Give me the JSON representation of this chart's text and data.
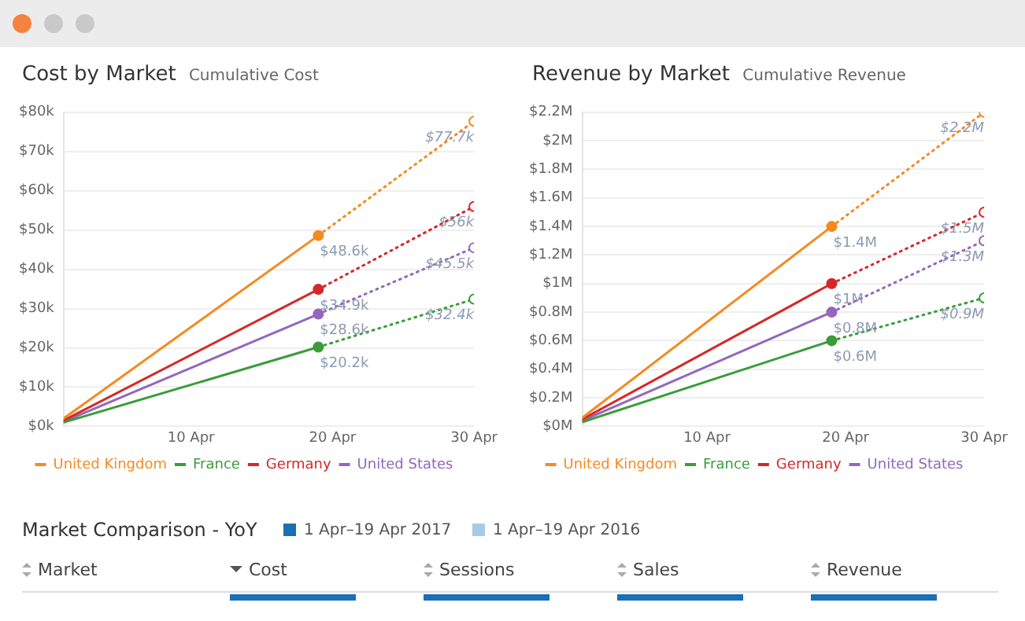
{
  "chart_data": [
    {
      "type": "line",
      "title": "Cost by Market",
      "subtitle": "Cumulative Cost",
      "xlim": [
        "--04-01",
        "--04-30"
      ],
      "xticks": [
        {
          "value": "--04-10",
          "label": "10 Apr"
        },
        {
          "value": "--04-20",
          "label": "20 Apr"
        },
        {
          "value": "--04-30",
          "label": "30 Apr"
        }
      ],
      "ylim": [
        0,
        80000
      ],
      "yticks": [
        {
          "value": 0,
          "label": "$0k"
        },
        {
          "value": 10000,
          "label": "$10k"
        },
        {
          "value": 20000,
          "label": "$20k"
        },
        {
          "value": 30000,
          "label": "$30k"
        },
        {
          "value": 40000,
          "label": "$40k"
        },
        {
          "value": 50000,
          "label": "$50k"
        },
        {
          "value": 60000,
          "label": "$60k"
        },
        {
          "value": 70000,
          "label": "$70k"
        },
        {
          "value": 80000,
          "label": "$80k"
        }
      ],
      "grid": "y",
      "legend": "bottom",
      "marker": "circle",
      "series": [
        {
          "name": "United Kingdom",
          "color": "#f58a1f",
          "x": [
            "--04-01",
            "--04-19"
          ],
          "values": [
            2000,
            48600
          ],
          "value_labels": [
            null,
            "$48.6k"
          ],
          "line_style": "solid"
        },
        {
          "name": "France",
          "color": "#3a9d3a",
          "x": [
            "--04-01",
            "--04-19"
          ],
          "values": [
            1000,
            20200
          ],
          "value_labels": [
            null,
            "$20.2k"
          ],
          "line_style": "solid"
        },
        {
          "name": "Germany",
          "color": "#d62728",
          "x": [
            "--04-01",
            "--04-19"
          ],
          "values": [
            1500,
            34900
          ],
          "value_labels": [
            null,
            "$34.9k"
          ],
          "line_style": "solid"
        },
        {
          "name": "United States",
          "color": "#9467bd",
          "x": [
            "--04-01",
            "--04-19"
          ],
          "values": [
            1200,
            28600
          ],
          "value_labels": [
            null,
            "$28.6k"
          ],
          "line_style": "solid"
        },
        {
          "color": "#f58a1f",
          "x": [
            "--04-19",
            "--04-30"
          ],
          "values": [
            48600,
            77700
          ],
          "value_labels": [
            null,
            "$77.7k"
          ],
          "line_style": "dotted"
        },
        {
          "color": "#3a9d3a",
          "x": [
            "--04-19",
            "--04-30"
          ],
          "values": [
            20200,
            32400
          ],
          "value_labels": [
            null,
            "$32.4k"
          ],
          "line_style": "dotted"
        },
        {
          "color": "#d62728",
          "x": [
            "--04-19",
            "--04-30"
          ],
          "values": [
            34900,
            56000
          ],
          "value_labels": [
            null,
            "$56k"
          ],
          "line_style": "dotted"
        },
        {
          "color": "#9467bd",
          "x": [
            "--04-19",
            "--04-30"
          ],
          "values": [
            28600,
            45500
          ],
          "value_labels": [
            null,
            "$45.5k"
          ],
          "line_style": "dotted"
        }
      ]
    },
    {
      "type": "line",
      "title": "Revenue by Market",
      "subtitle": "Cumulative Revenue",
      "xlim": [
        "--04-01",
        "--04-30"
      ],
      "xticks": [
        {
          "value": "--04-10",
          "label": "10 Apr"
        },
        {
          "value": "--04-20",
          "label": "20 Apr"
        },
        {
          "value": "--04-30",
          "label": "30 Apr"
        }
      ],
      "ylim": [
        0,
        2200000
      ],
      "yticks": [
        {
          "value": 0,
          "label": "$0M"
        },
        {
          "value": 200000,
          "label": "$0.2M"
        },
        {
          "value": 400000,
          "label": "$0.4M"
        },
        {
          "value": 600000,
          "label": "$0.6M"
        },
        {
          "value": 800000,
          "label": "$0.8M"
        },
        {
          "value": 1000000,
          "label": "$1M"
        },
        {
          "value": 1200000,
          "label": "$1.2M"
        },
        {
          "value": 1400000,
          "label": "$1.4M"
        },
        {
          "value": 1600000,
          "label": "$1.6M"
        },
        {
          "value": 1800000,
          "label": "$1.8M"
        },
        {
          "value": 2000000,
          "label": "$2M"
        },
        {
          "value": 2200000,
          "label": "$2.2M"
        }
      ],
      "grid": "y",
      "legend": "bottom",
      "marker": "circle",
      "series": [
        {
          "name": "United Kingdom",
          "color": "#f58a1f",
          "x": [
            "--04-01",
            "--04-19"
          ],
          "values": [
            60000,
            1400000
          ],
          "value_labels": [
            null,
            "$1.4M"
          ],
          "line_style": "solid"
        },
        {
          "name": "France",
          "color": "#3a9d3a",
          "x": [
            "--04-01",
            "--04-19"
          ],
          "values": [
            30000,
            600000
          ],
          "value_labels": [
            null,
            "$0.6M"
          ],
          "line_style": "solid"
        },
        {
          "name": "Germany",
          "color": "#d62728",
          "x": [
            "--04-01",
            "--04-19"
          ],
          "values": [
            50000,
            1000000
          ],
          "value_labels": [
            null,
            "$1M"
          ],
          "line_style": "solid"
        },
        {
          "name": "United States",
          "color": "#9467bd",
          "x": [
            "--04-01",
            "--04-19"
          ],
          "values": [
            40000,
            800000
          ],
          "value_labels": [
            null,
            "$0.8M"
          ],
          "line_style": "solid"
        },
        {
          "color": "#f58a1f",
          "x": [
            "--04-19",
            "--04-30"
          ],
          "values": [
            1400000,
            2200000
          ],
          "value_labels": [
            null,
            "$2.2M"
          ],
          "line_style": "dotted"
        },
        {
          "color": "#3a9d3a",
          "x": [
            "--04-19",
            "--04-30"
          ],
          "values": [
            600000,
            900000
          ],
          "value_labels": [
            null,
            "$0.9M"
          ],
          "line_style": "dotted"
        },
        {
          "color": "#d62728",
          "x": [
            "--04-19",
            "--04-30"
          ],
          "values": [
            1000000,
            1500000
          ],
          "value_labels": [
            null,
            "$1.5M"
          ],
          "line_style": "dotted"
        },
        {
          "color": "#9467bd",
          "x": [
            "--04-19",
            "--04-30"
          ],
          "values": [
            800000,
            1300000
          ],
          "value_labels": [
            null,
            "$1.3M"
          ],
          "line_style": "dotted"
        }
      ]
    },
    {
      "type": "other",
      "title": "Market Comparison - YoY",
      "categories": [
        "Market",
        "Cost",
        "Sessions",
        "Sales",
        "Revenue"
      ],
      "annotations": [
        "1 Apr–19 Apr 2017",
        "1 Apr–19 Apr 2016"
      ],
      "colors": [
        "#1a6fb5",
        "#a6cbe6"
      ]
    }
  ]
}
